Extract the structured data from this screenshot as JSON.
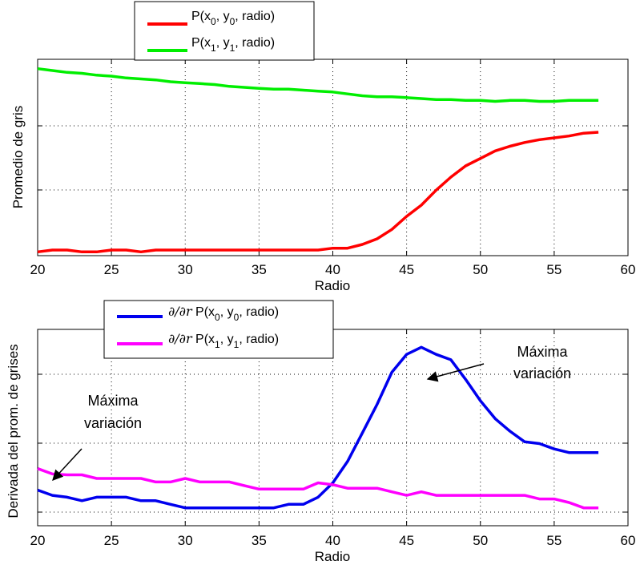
{
  "chart_data": [
    {
      "type": "line",
      "title": "",
      "xlabel": "Radio",
      "ylabel": "Promedio de gris",
      "xlim": [
        20,
        60
      ],
      "xticks": [
        "20",
        "25",
        "30",
        "35",
        "40",
        "45",
        "50",
        "55",
        "60"
      ],
      "y_tick_labels_visible": false,
      "grid": true,
      "legend_placement": "top-left, outside above axes",
      "x": [
        20,
        21,
        22,
        23,
        24,
        25,
        26,
        27,
        28,
        29,
        30,
        31,
        32,
        33,
        34,
        35,
        36,
        37,
        38,
        39,
        40,
        41,
        42,
        43,
        44,
        45,
        46,
        47,
        48,
        49,
        50,
        51,
        52,
        53,
        54,
        55,
        56,
        57,
        58
      ],
      "series": [
        {
          "name": "P(x0, y0, radio)",
          "color": "#ff0000",
          "values": [
            0.02,
            0.03,
            0.03,
            0.02,
            0.02,
            0.03,
            0.03,
            0.02,
            0.03,
            0.03,
            0.03,
            0.03,
            0.03,
            0.03,
            0.03,
            0.03,
            0.03,
            0.03,
            0.03,
            0.03,
            0.04,
            0.04,
            0.06,
            0.09,
            0.14,
            0.21,
            0.27,
            0.35,
            0.42,
            0.48,
            0.52,
            0.56,
            0.585,
            0.605,
            0.62,
            0.63,
            0.64,
            0.655,
            0.66
          ]
        },
        {
          "name": "P(x1, y1, radio)",
          "color": "#00ee00",
          "values": [
            1.0,
            0.99,
            0.98,
            0.975,
            0.965,
            0.96,
            0.95,
            0.945,
            0.94,
            0.93,
            0.925,
            0.92,
            0.915,
            0.905,
            0.9,
            0.895,
            0.89,
            0.89,
            0.885,
            0.88,
            0.875,
            0.865,
            0.855,
            0.85,
            0.85,
            0.845,
            0.84,
            0.835,
            0.835,
            0.83,
            0.83,
            0.825,
            0.83,
            0.83,
            0.825,
            0.825,
            0.83,
            0.83,
            0.83
          ]
        }
      ],
      "ylim": [
        0,
        1.05
      ]
    },
    {
      "type": "line",
      "title": "",
      "xlabel": "Radio",
      "ylabel": "Derivada del prom. de grises",
      "xlim": [
        20,
        60
      ],
      "xticks": [
        "20",
        "25",
        "30",
        "35",
        "40",
        "45",
        "50",
        "55",
        "60"
      ],
      "y_tick_labels_visible": false,
      "grid": true,
      "legend_placement": "top-left, outside above axes",
      "x": [
        20,
        21,
        22,
        23,
        24,
        25,
        26,
        27,
        28,
        29,
        30,
        31,
        32,
        33,
        34,
        35,
        36,
        37,
        38,
        39,
        40,
        41,
        42,
        43,
        44,
        45,
        46,
        47,
        48,
        49,
        50,
        51,
        52,
        53,
        54,
        55,
        56,
        57,
        58
      ],
      "series": [
        {
          "name": "∂/∂r P(x0, y0, radio)",
          "color": "#0000ee",
          "values": [
            0.2,
            0.17,
            0.16,
            0.14,
            0.16,
            0.16,
            0.16,
            0.14,
            0.14,
            0.12,
            0.1,
            0.1,
            0.1,
            0.1,
            0.1,
            0.1,
            0.1,
            0.12,
            0.12,
            0.16,
            0.24,
            0.36,
            0.52,
            0.68,
            0.86,
            0.96,
            1.0,
            0.96,
            0.93,
            0.82,
            0.7,
            0.6,
            0.53,
            0.47,
            0.46,
            0.43,
            0.41,
            0.41,
            0.41
          ]
        },
        {
          "name": "∂/∂r P(x1, y1, radio)",
          "color": "#ff00ff",
          "values": [
            0.32,
            0.29,
            0.285,
            0.285,
            0.265,
            0.265,
            0.265,
            0.265,
            0.245,
            0.245,
            0.265,
            0.245,
            0.245,
            0.245,
            0.225,
            0.205,
            0.205,
            0.205,
            0.205,
            0.24,
            0.23,
            0.21,
            0.21,
            0.21,
            0.19,
            0.17,
            0.19,
            0.17,
            0.17,
            0.17,
            0.17,
            0.17,
            0.17,
            0.17,
            0.15,
            0.15,
            0.13,
            0.1,
            0.1
          ]
        }
      ],
      "ylim": [
        0,
        1.1
      ],
      "annotations": [
        {
          "text_lines": [
            "Máxima",
            "variación"
          ],
          "points_to_x": 46,
          "points_to_series": 0
        },
        {
          "text_lines": [
            "Máxima",
            "variación"
          ],
          "points_to_x": 20,
          "points_to_series": 1
        }
      ]
    }
  ]
}
